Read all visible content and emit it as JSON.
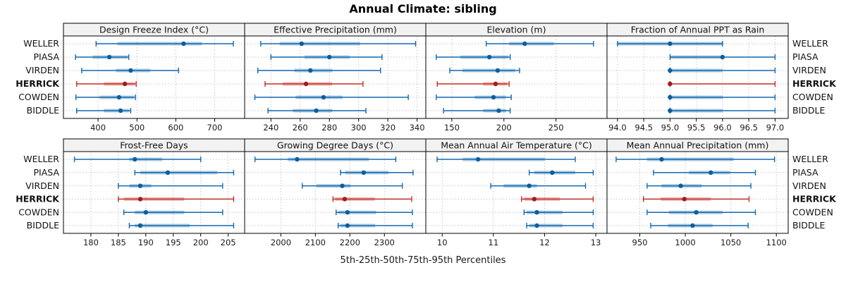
{
  "title": "Annual Climate: sibling",
  "caption": "5th-25th-50th-75th-95th Percentiles",
  "colors": {
    "line": "#1169B0",
    "dot": "#0D5E9C",
    "band_opacity": 0.35,
    "highlight_line": "#C22E25",
    "highlight_dot": "#9E1D18",
    "grid": "#C6C6C6",
    "strip_bg": "#F2F2F2",
    "border": "#000000",
    "text": "#111111"
  },
  "chart_data": {
    "type": "dotplot",
    "title": "Annual Climate: sibling",
    "caption": "5th-25th-50th-75th-95th Percentiles",
    "percentiles": [
      5,
      25,
      50,
      75,
      95
    ],
    "categories": [
      "WELLER",
      "PIASA",
      "VIRDEN",
      "HERRICK",
      "COWDEN",
      "BIDDLE"
    ],
    "highlight": "HERRICK",
    "layout": {
      "rows": 2,
      "cols": 4,
      "legend": "none",
      "grid": "dotted"
    },
    "panels": [
      {
        "title": "Design Freeze Index (°C)",
        "row": 0,
        "col": 0,
        "xlim": [
          311,
          777
        ],
        "ticks": [
          400,
          500,
          600,
          700
        ],
        "tick_labels": [
          "400",
          "500",
          "600",
          "700"
        ],
        "series": {
          "WELLER": [
            395,
            450,
            620,
            667,
            748
          ],
          "PIASA": [
            342,
            386,
            429,
            476,
            479
          ],
          "VIRDEN": [
            358,
            446,
            484,
            534,
            607
          ],
          "HERRICK": [
            345,
            415,
            469,
            494,
            498
          ],
          "COWDEN": [
            343,
            404,
            454,
            492,
            496
          ],
          "BIDDLE": [
            345,
            415,
            458,
            480,
            484
          ]
        }
      },
      {
        "title": "Effective Precipitation (mm)",
        "row": 0,
        "col": 1,
        "xlim": [
          222,
          346
        ],
        "ticks": [
          240,
          260,
          280,
          300,
          320,
          340
        ],
        "tick_labels": [
          "240",
          "260",
          "280",
          "300",
          "320",
          "340"
        ],
        "series": {
          "WELLER": [
            233,
            246,
            261,
            301,
            339
          ],
          "PIASA": [
            240,
            263,
            280,
            294,
            316
          ],
          "VIRDEN": [
            231,
            256,
            267,
            282,
            315
          ],
          "HERRICK": [
            236,
            248,
            264,
            282,
            303
          ],
          "COWDEN": [
            229,
            257,
            276,
            289,
            334
          ],
          "BIDDLE": [
            238,
            255,
            271,
            282,
            305
          ]
        }
      },
      {
        "title": "Elevation (m)",
        "row": 0,
        "col": 2,
        "xlim": [
          125,
          299
        ],
        "ticks": [
          150,
          200,
          250
        ],
        "tick_labels": [
          "150",
          "200",
          "250"
        ],
        "series": {
          "WELLER": [
            183,
            205,
            220,
            248,
            286
          ],
          "PIASA": [
            135,
            158,
            186,
            204,
            206
          ],
          "VIRDEN": [
            148,
            160,
            194,
            211,
            215
          ],
          "HERRICK": [
            136,
            180,
            192,
            203,
            205
          ],
          "COWDEN": [
            135,
            172,
            190,
            202,
            207
          ],
          "BIDDLE": [
            142,
            180,
            195,
            202,
            206
          ]
        }
      },
      {
        "title": "Fraction of Annual PPT as Rain",
        "row": 0,
        "col": 3,
        "xlim": [
          93.8,
          97.25
        ],
        "ticks": [
          94.0,
          94.5,
          95.0,
          95.5,
          96.0,
          96.5,
          97.0
        ],
        "tick_labels": [
          "94.0",
          "94.5",
          "95.0",
          "95.5",
          "96.0",
          "96.5",
          "97.0"
        ],
        "series": {
          "WELLER": [
            94,
            94,
            95,
            96,
            96
          ],
          "PIASA": [
            95,
            95,
            96,
            96,
            97
          ],
          "VIRDEN": [
            95,
            95,
            95,
            96,
            97
          ],
          "HERRICK": [
            95,
            95,
            95,
            95,
            97
          ],
          "COWDEN": [
            95,
            95,
            95,
            96,
            97
          ],
          "BIDDLE": [
            95,
            95,
            95,
            96,
            97
          ]
        }
      },
      {
        "title": "Frost-Free Days",
        "row": 1,
        "col": 0,
        "xlim": [
          175,
          208
        ],
        "ticks": [
          180,
          185,
          190,
          195,
          200,
          205
        ],
        "tick_labels": [
          "180",
          "185",
          "190",
          "195",
          "200",
          "205"
        ],
        "series": {
          "WELLER": [
            177,
            187,
            188,
            193,
            200
          ],
          "PIASA": [
            188,
            189,
            194,
            203,
            206
          ],
          "VIRDEN": [
            185,
            187,
            189,
            191,
            204
          ],
          "HERRICK": [
            185,
            186,
            189,
            197,
            206
          ],
          "COWDEN": [
            186,
            188,
            190,
            197,
            204
          ],
          "BIDDLE": [
            187,
            188,
            189,
            198,
            206
          ]
        }
      },
      {
        "title": "Growing Degree Days (°C)",
        "row": 1,
        "col": 1,
        "xlim": [
          1895,
          2420
        ],
        "ticks": [
          2000,
          2100,
          2200,
          2300
        ],
        "tick_labels": [
          "2000",
          "2100",
          "2200",
          "2300"
        ],
        "series": {
          "WELLER": [
            1925,
            2020,
            2047,
            2255,
            2333
          ],
          "PIASA": [
            2173,
            2186,
            2240,
            2312,
            2383
          ],
          "VIRDEN": [
            2062,
            2103,
            2178,
            2202,
            2352
          ],
          "HERRICK": [
            2151,
            2157,
            2185,
            2272,
            2379
          ],
          "COWDEN": [
            2160,
            2166,
            2193,
            2276,
            2381
          ],
          "BIDDLE": [
            2166,
            2172,
            2193,
            2273,
            2381
          ]
        }
      },
      {
        "title": "Mean Annual Air Temperature (°C)",
        "row": 1,
        "col": 2,
        "xlim": [
          9.68,
          13.22
        ],
        "ticks": [
          10,
          11,
          12,
          13
        ],
        "tick_labels": [
          "10",
          "11",
          "12",
          "13"
        ],
        "series": {
          "WELLER": [
            9.9,
            10.4,
            10.7,
            12.0,
            12.6
          ],
          "PIASA": [
            11.7,
            11.8,
            12.15,
            12.6,
            12.95
          ],
          "VIRDEN": [
            10.95,
            11.2,
            11.7,
            11.85,
            12.8
          ],
          "HERRICK": [
            11.55,
            11.6,
            11.8,
            12.3,
            12.95
          ],
          "COWDEN": [
            11.6,
            11.65,
            11.85,
            12.35,
            12.95
          ],
          "BIDDLE": [
            11.65,
            11.7,
            11.85,
            12.35,
            12.95
          ]
        }
      },
      {
        "title": "Mean Annual Precipitation (mm)",
        "row": 1,
        "col": 3,
        "xlim": [
          914,
          1113
        ],
        "ticks": [
          950,
          1000,
          1050,
          1100
        ],
        "tick_labels": [
          "950",
          "1000",
          "1050",
          "1100"
        ],
        "series": {
          "WELLER": [
            924,
            958,
            974,
            1053,
            1098
          ],
          "PIASA": [
            965,
            1004,
            1028,
            1049,
            1077
          ],
          "VIRDEN": [
            958,
            974,
            995,
            1018,
            1072
          ],
          "HERRICK": [
            954,
            973,
            999,
            1028,
            1070
          ],
          "COWDEN": [
            958,
            982,
            1012,
            1041,
            1077
          ],
          "BIDDLE": [
            962,
            981,
            1008,
            1030,
            1069
          ]
        }
      }
    ]
  }
}
